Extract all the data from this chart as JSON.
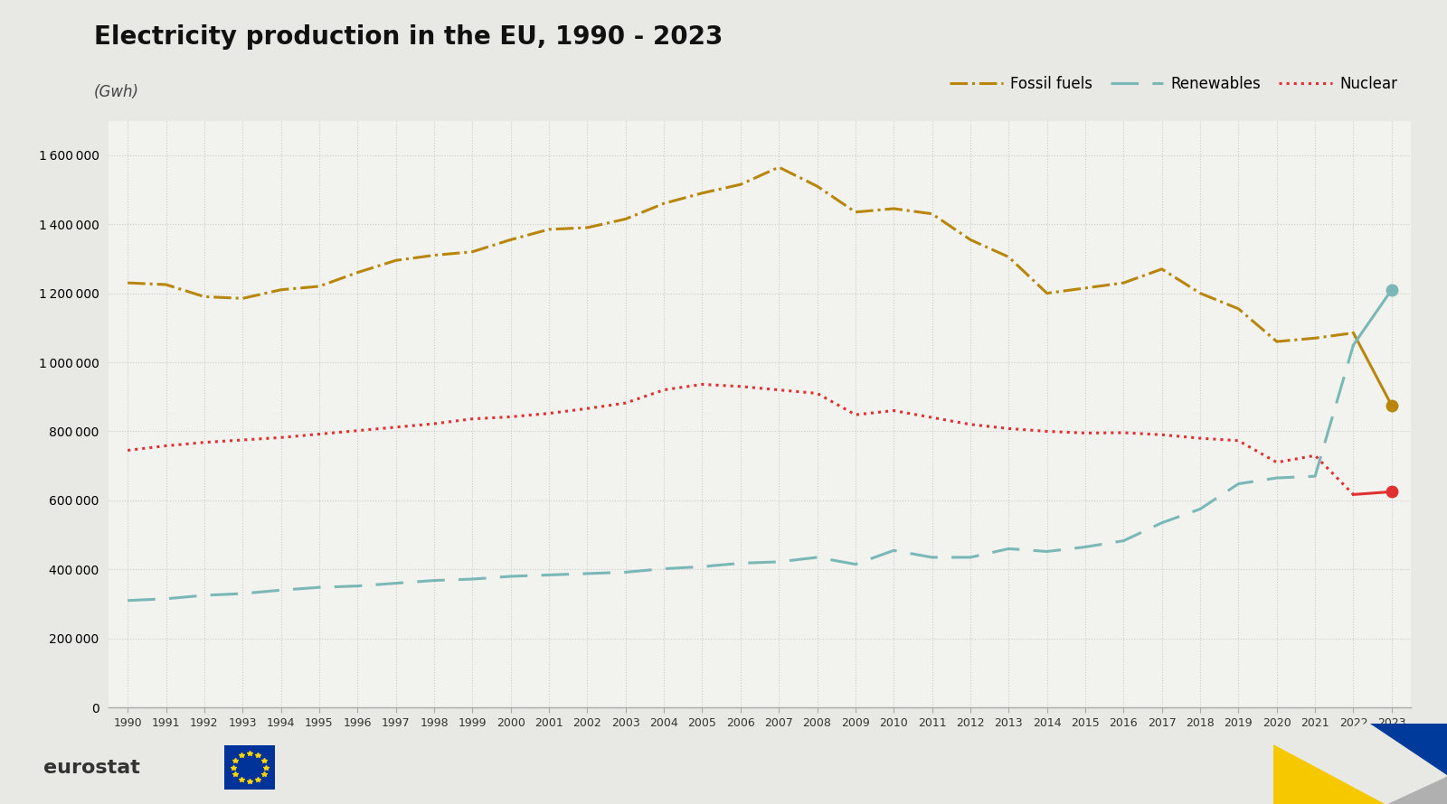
{
  "title": "Electricity production in the EU, 1990 - 2023",
  "subtitle": "(Gwh)",
  "background_color": "#e8e8e4",
  "plot_background": "#f2f2ee",
  "years": [
    1990,
    1991,
    1992,
    1993,
    1994,
    1995,
    1996,
    1997,
    1998,
    1999,
    2000,
    2001,
    2002,
    2003,
    2004,
    2005,
    2006,
    2007,
    2008,
    2009,
    2010,
    2011,
    2012,
    2013,
    2014,
    2015,
    2016,
    2017,
    2018,
    2019,
    2020,
    2021,
    2022,
    2023
  ],
  "fossil_fuels": [
    1230000,
    1225000,
    1190000,
    1185000,
    1210000,
    1220000,
    1260000,
    1295000,
    1310000,
    1320000,
    1355000,
    1385000,
    1390000,
    1415000,
    1460000,
    1490000,
    1515000,
    1565000,
    1510000,
    1435000,
    1445000,
    1430000,
    1355000,
    1305000,
    1200000,
    1215000,
    1230000,
    1270000,
    1200000,
    1155000,
    1060000,
    1070000,
    1085000,
    875000
  ],
  "renewables": [
    310000,
    315000,
    325000,
    330000,
    340000,
    348000,
    352000,
    360000,
    368000,
    372000,
    380000,
    384000,
    388000,
    392000,
    402000,
    408000,
    418000,
    422000,
    435000,
    415000,
    455000,
    435000,
    435000,
    460000,
    452000,
    465000,
    483000,
    535000,
    575000,
    648000,
    665000,
    670000,
    1050000,
    1210000
  ],
  "nuclear": [
    745000,
    758000,
    768000,
    775000,
    782000,
    792000,
    802000,
    812000,
    822000,
    836000,
    842000,
    852000,
    866000,
    882000,
    920000,
    936000,
    930000,
    920000,
    910000,
    848000,
    860000,
    840000,
    820000,
    808000,
    800000,
    795000,
    796000,
    790000,
    780000,
    773000,
    710000,
    730000,
    617000,
    625000
  ],
  "fossil_color": "#b8860b",
  "renewables_color": "#7ab8b8",
  "nuclear_color": "#e03030",
  "xlim": [
    1989.5,
    2023.5
  ],
  "ylim": [
    0,
    1700000
  ],
  "yticks": [
    0,
    200000,
    400000,
    600000,
    800000,
    1000000,
    1200000,
    1400000,
    1600000
  ],
  "grid_color": "#cccccc",
  "legend_labels": [
    "Fossil fuels",
    "Renewables",
    "Nuclear"
  ]
}
